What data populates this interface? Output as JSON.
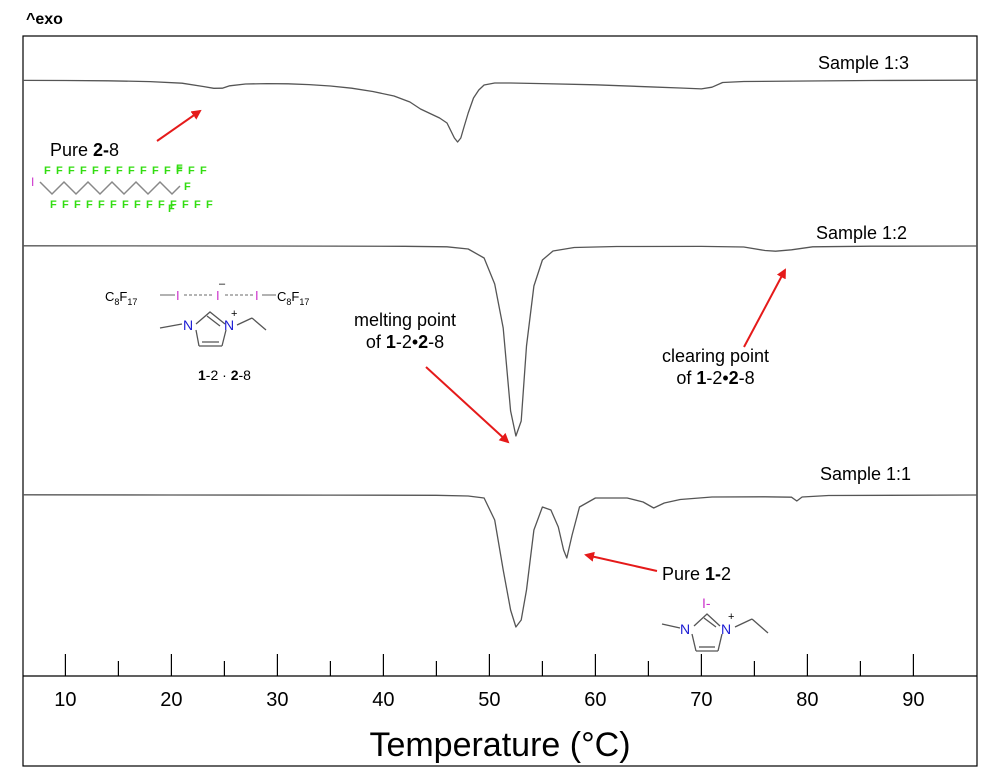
{
  "chart_data": {
    "type": "line",
    "title": "",
    "exo_label": "^exo",
    "xlabel": "Temperature (°C)",
    "ylabel": "",
    "xlim": [
      6,
      96
    ],
    "x_ticks_labeled": [
      10,
      20,
      30,
      40,
      50,
      60,
      70,
      80,
      90
    ],
    "x_ticks_minor": [
      15,
      25,
      35,
      45,
      55,
      65,
      75,
      85
    ],
    "series": [
      {
        "name": "Sample 1:3",
        "points": [
          [
            6,
            -0.4
          ],
          [
            10,
            -0.5
          ],
          [
            14,
            -0.8
          ],
          [
            18,
            -1.6
          ],
          [
            21,
            -3.2
          ],
          [
            23,
            -6.5
          ],
          [
            24,
            -8.3
          ],
          [
            24.8,
            -8.2
          ],
          [
            25.5,
            -5.8
          ],
          [
            27,
            -4.0
          ],
          [
            29,
            -3.6
          ],
          [
            31,
            -3.8
          ],
          [
            33,
            -4.6
          ],
          [
            35,
            -6.0
          ],
          [
            37,
            -8.2
          ],
          [
            39,
            -11.5
          ],
          [
            41,
            -16.0
          ],
          [
            42.5,
            -22.0
          ],
          [
            43.5,
            -29.0
          ],
          [
            44.5,
            -34.0
          ],
          [
            45.3,
            -38.0
          ],
          [
            46,
            -43.0
          ],
          [
            46.7,
            -58.0
          ],
          [
            47,
            -62.0
          ],
          [
            47.3,
            -58.0
          ],
          [
            47.6,
            -47.0
          ],
          [
            48,
            -33.0
          ],
          [
            48.5,
            -18.0
          ],
          [
            49,
            -10.0
          ],
          [
            49.5,
            -5.0
          ],
          [
            50.5,
            -3.0
          ],
          [
            52,
            -3.0
          ],
          [
            55,
            -3.6
          ],
          [
            60,
            -4.8
          ],
          [
            65,
            -6.8
          ],
          [
            68,
            -8.0
          ],
          [
            70,
            -8.9
          ],
          [
            71,
            -7.2
          ],
          [
            72,
            -2.5
          ],
          [
            74,
            -1.5
          ],
          [
            80,
            -1.0
          ],
          [
            86,
            -0.5
          ],
          [
            96,
            -0.2
          ]
        ],
        "label_text": "Sample 1:3"
      },
      {
        "name": "Sample 1:2",
        "points": [
          [
            6,
            0.2
          ],
          [
            15,
            0.1
          ],
          [
            25,
            0.0
          ],
          [
            35,
            -0.1
          ],
          [
            42,
            -0.3
          ],
          [
            46,
            -0.8
          ],
          [
            48,
            -3.0
          ],
          [
            49.5,
            -12.0
          ],
          [
            50.5,
            -38.0
          ],
          [
            51.3,
            -82.0
          ],
          [
            52,
            -165.0
          ],
          [
            52.5,
            -190.0
          ],
          [
            53,
            -175.0
          ],
          [
            53.5,
            -100.0
          ],
          [
            54.2,
            -40.0
          ],
          [
            55,
            -14.0
          ],
          [
            56,
            -5.0
          ],
          [
            58,
            -1.5
          ],
          [
            62,
            -0.5
          ],
          [
            70,
            -0.4
          ],
          [
            74,
            -1.0
          ],
          [
            76,
            -4.5
          ],
          [
            77,
            -5.2
          ],
          [
            78.5,
            -3.8
          ],
          [
            80.5,
            -0.8
          ],
          [
            86,
            -0.2
          ],
          [
            96,
            0.0
          ]
        ],
        "label_text": "Sample 1:2"
      },
      {
        "name": "Sample 1:1",
        "points": [
          [
            6,
            0.2
          ],
          [
            20,
            0.0
          ],
          [
            35,
            -0.1
          ],
          [
            45,
            -0.3
          ],
          [
            48,
            -1.0
          ],
          [
            49.5,
            -3.0
          ],
          [
            50.5,
            -25.0
          ],
          [
            51.3,
            -75.0
          ],
          [
            52,
            -115.0
          ],
          [
            52.5,
            -132.0
          ],
          [
            53,
            -125.0
          ],
          [
            53.5,
            -95.0
          ],
          [
            54.2,
            -35.0
          ],
          [
            55,
            -12.0
          ],
          [
            55.8,
            -15.0
          ],
          [
            56.5,
            -32.0
          ],
          [
            57,
            -55.0
          ],
          [
            57.3,
            -63.0
          ],
          [
            57.8,
            -40.0
          ],
          [
            58.5,
            -12.0
          ],
          [
            60,
            -3.0
          ],
          [
            63,
            -3.0
          ],
          [
            64.5,
            -7.0
          ],
          [
            65.5,
            -13.0
          ],
          [
            66.5,
            -8.0
          ],
          [
            68,
            -4.5
          ],
          [
            71,
            -2.0
          ],
          [
            76,
            -1.8
          ],
          [
            78.5,
            -2.2
          ],
          [
            79,
            -6.0
          ],
          [
            79.5,
            -2.0
          ],
          [
            82,
            -0.5
          ],
          [
            96,
            0.0
          ]
        ],
        "label_text": "Sample 1:1"
      }
    ],
    "annotations": {
      "pure_2_8": {
        "text": "Pure ",
        "bold": "2-",
        "rest": "8"
      },
      "melting_line1": "melting point",
      "melting_line2": {
        "text": "of ",
        "b1": "1",
        "t2": "-2•",
        "b2": "2",
        "t3": "-8"
      },
      "clearing_line1": "clearing point",
      "clearing_line2": {
        "text": "of ",
        "b1": "1",
        "t2": "-2•",
        "b2": "2",
        "t3": "-8"
      },
      "pure_1_2": {
        "text": "Pure ",
        "bold": "1-",
        "rest": "2"
      },
      "cocrystal_label": {
        "b1": "1",
        "t1": "-2 · ",
        "b2": "2",
        "t2": "-8"
      },
      "structure_formula": {
        "c": "C",
        "sub8": "8",
        "f": "F",
        "sub17": "17",
        "i": "I",
        "minus": "–"
      },
      "imidazolium": {
        "n": "N",
        "plus": "+",
        "i_minus": "I-"
      },
      "perfluoro_labels": {
        "f": "F",
        "i": "I"
      }
    },
    "colors": {
      "arrow": "#e51a1a",
      "iodine": "#cc33cc",
      "nitrogen": "#1a1ad4",
      "fluorine": "#33dd11",
      "curve": "#555555"
    }
  }
}
